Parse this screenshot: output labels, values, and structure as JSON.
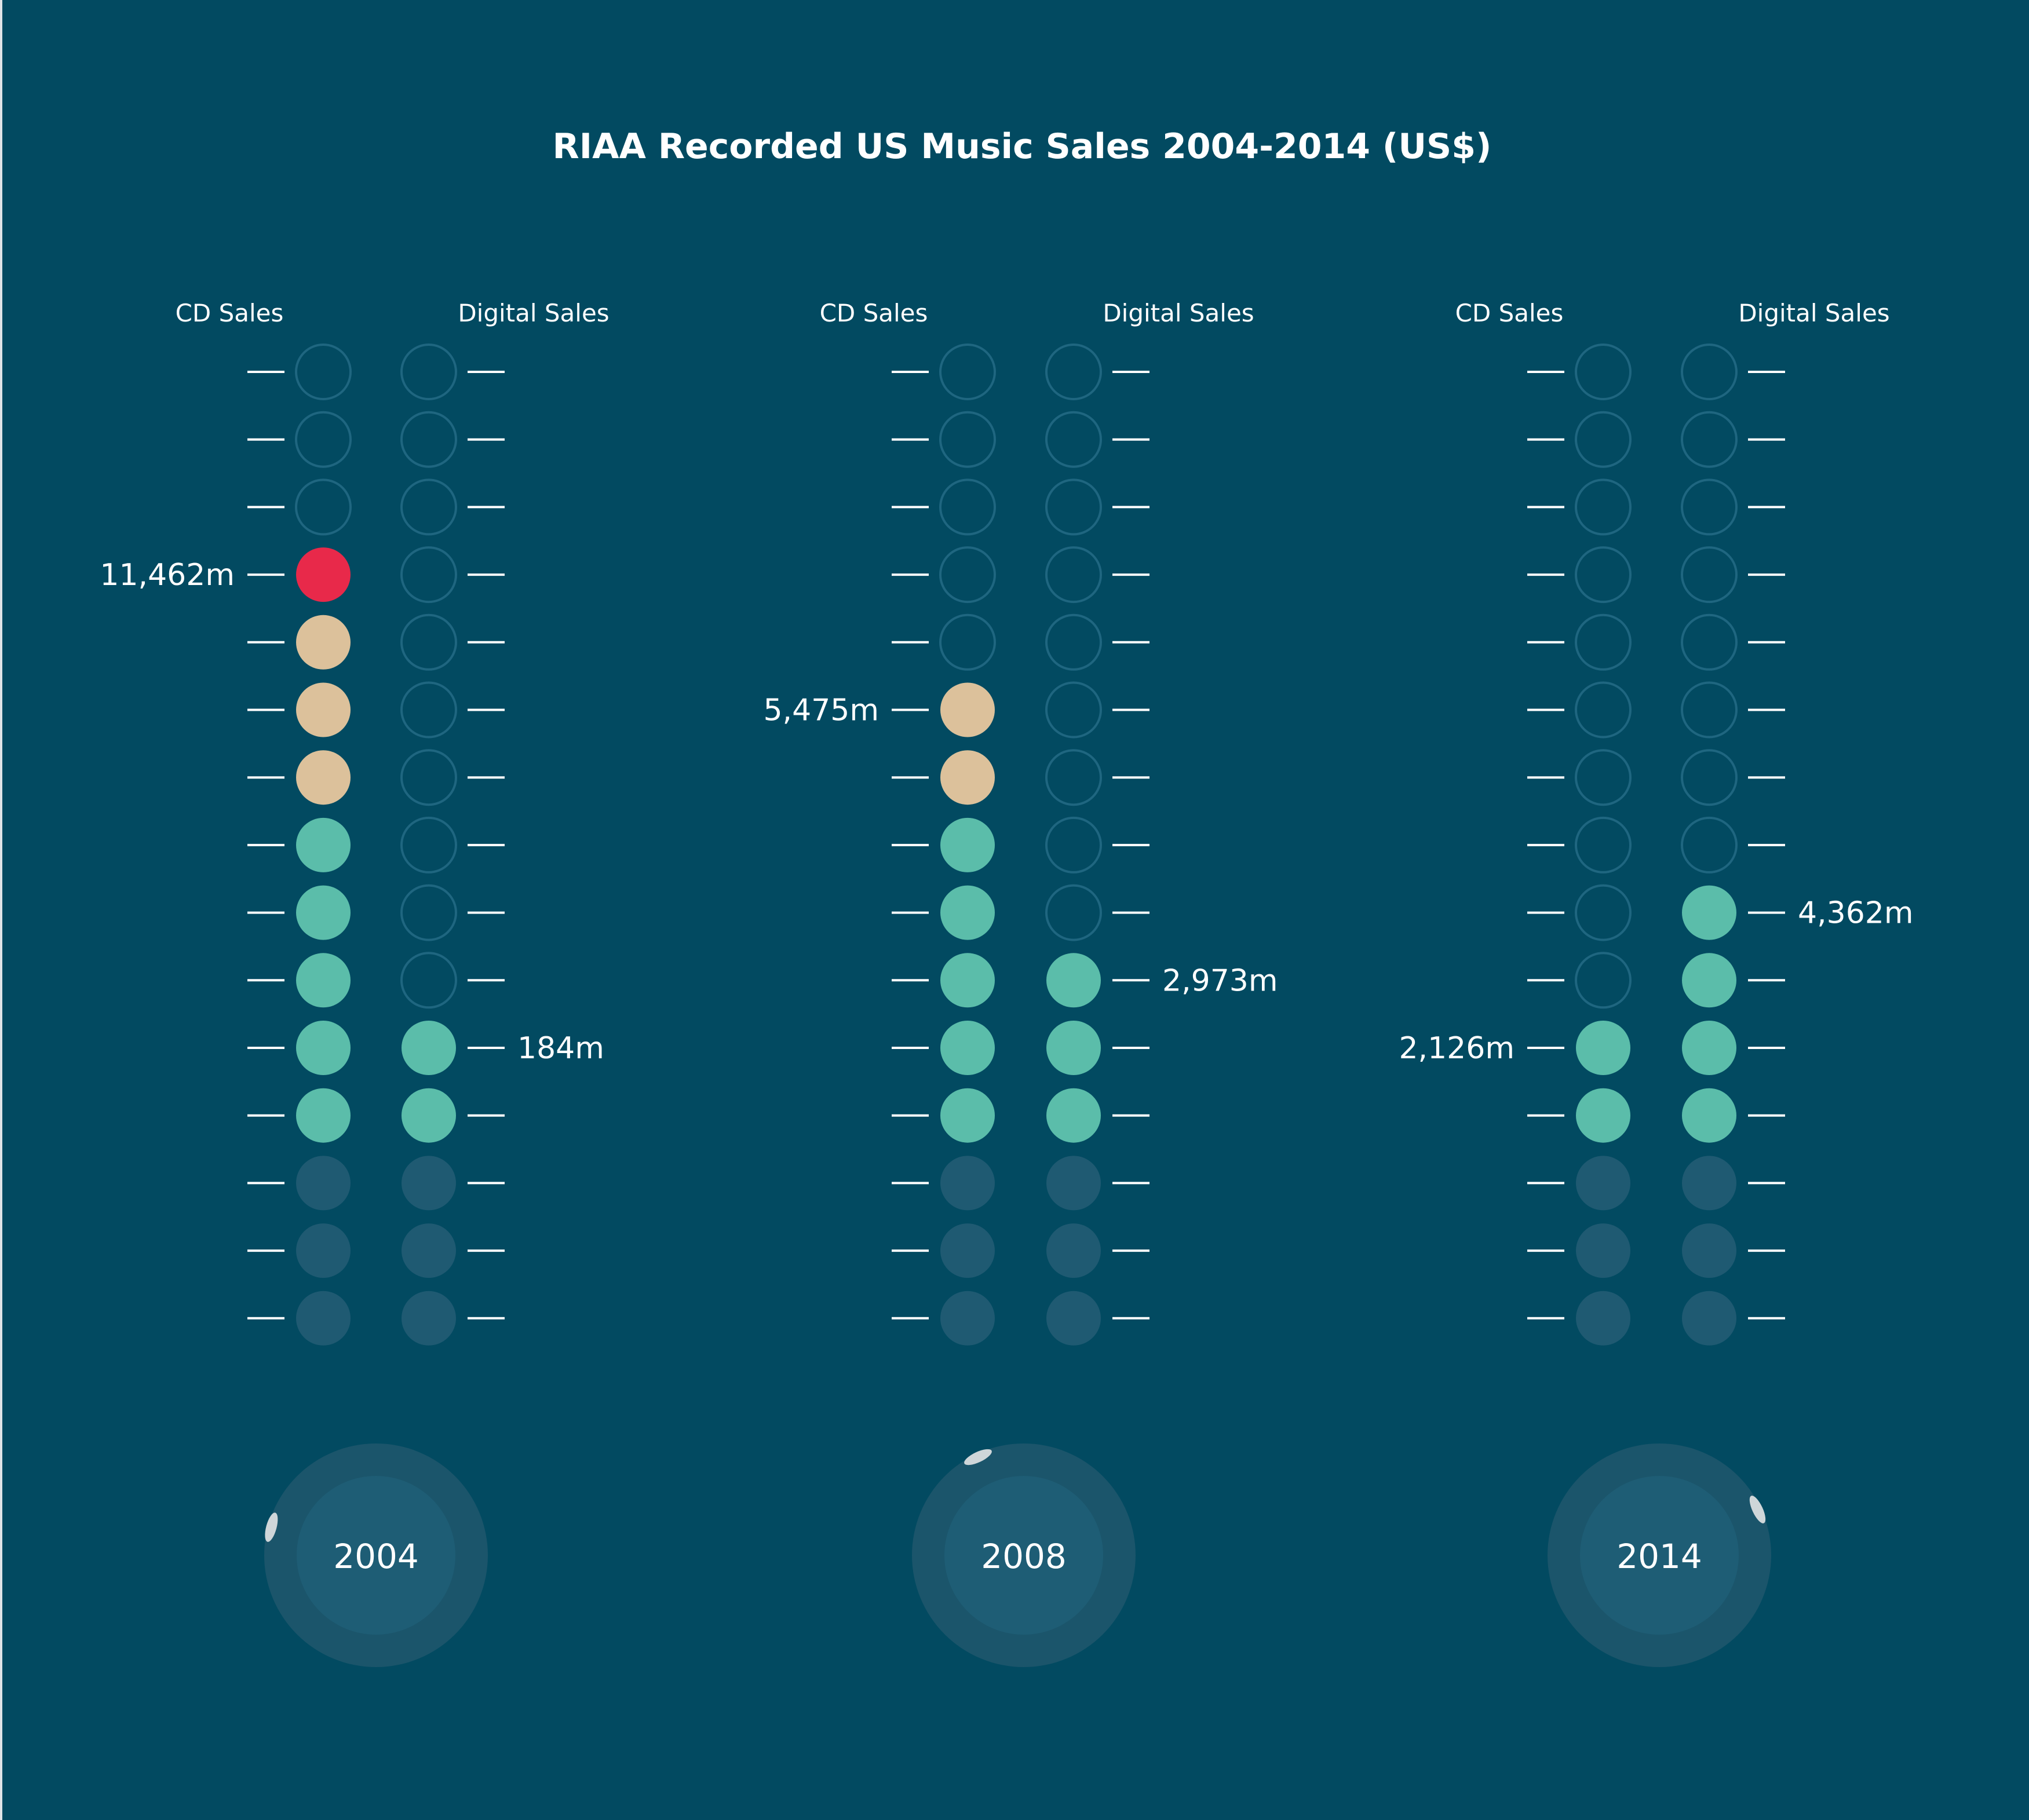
{
  "chart_data": {
    "type": "dot-thermometer",
    "title": "RIAA Recorded US Music Sales 2004-2014 (US$)",
    "column_labels": [
      "CD Sales",
      "Digital Sales"
    ],
    "colors": {
      "background": "#024a61",
      "empty_ring": "#1f6680",
      "low_fill": "#1f5a72",
      "teal": "#5bbdaa",
      "beige": "#dcc19b",
      "red": "#e8294a",
      "tick": "#ffffff",
      "year_outer": "#1b556b",
      "year_inner": "#1e5d75",
      "marker": "#cfd6d9"
    },
    "panels": [
      {
        "year": "2004",
        "cd": {
          "filled_dots": 12,
          "label": "11,462m"
        },
        "digital": {
          "filled_dots": 5,
          "label": "184m"
        }
      },
      {
        "year": "2008",
        "cd": {
          "filled_dots": 10,
          "label": "5,475m"
        },
        "digital": {
          "filled_dots": 6,
          "label": "2,973m"
        }
      },
      {
        "year": "2014",
        "cd": {
          "filled_dots": 5,
          "label": "2,126m"
        },
        "digital": {
          "filled_dots": 7,
          "label": "4,362m"
        }
      }
    ],
    "dots_per_column": 15,
    "base_dots": 3,
    "color_bands": [
      {
        "from": 1,
        "to": 5,
        "color": "teal"
      },
      {
        "from": 6,
        "to": 8,
        "color": "beige"
      },
      {
        "from": 9,
        "to": 11,
        "color": "red"
      }
    ]
  }
}
